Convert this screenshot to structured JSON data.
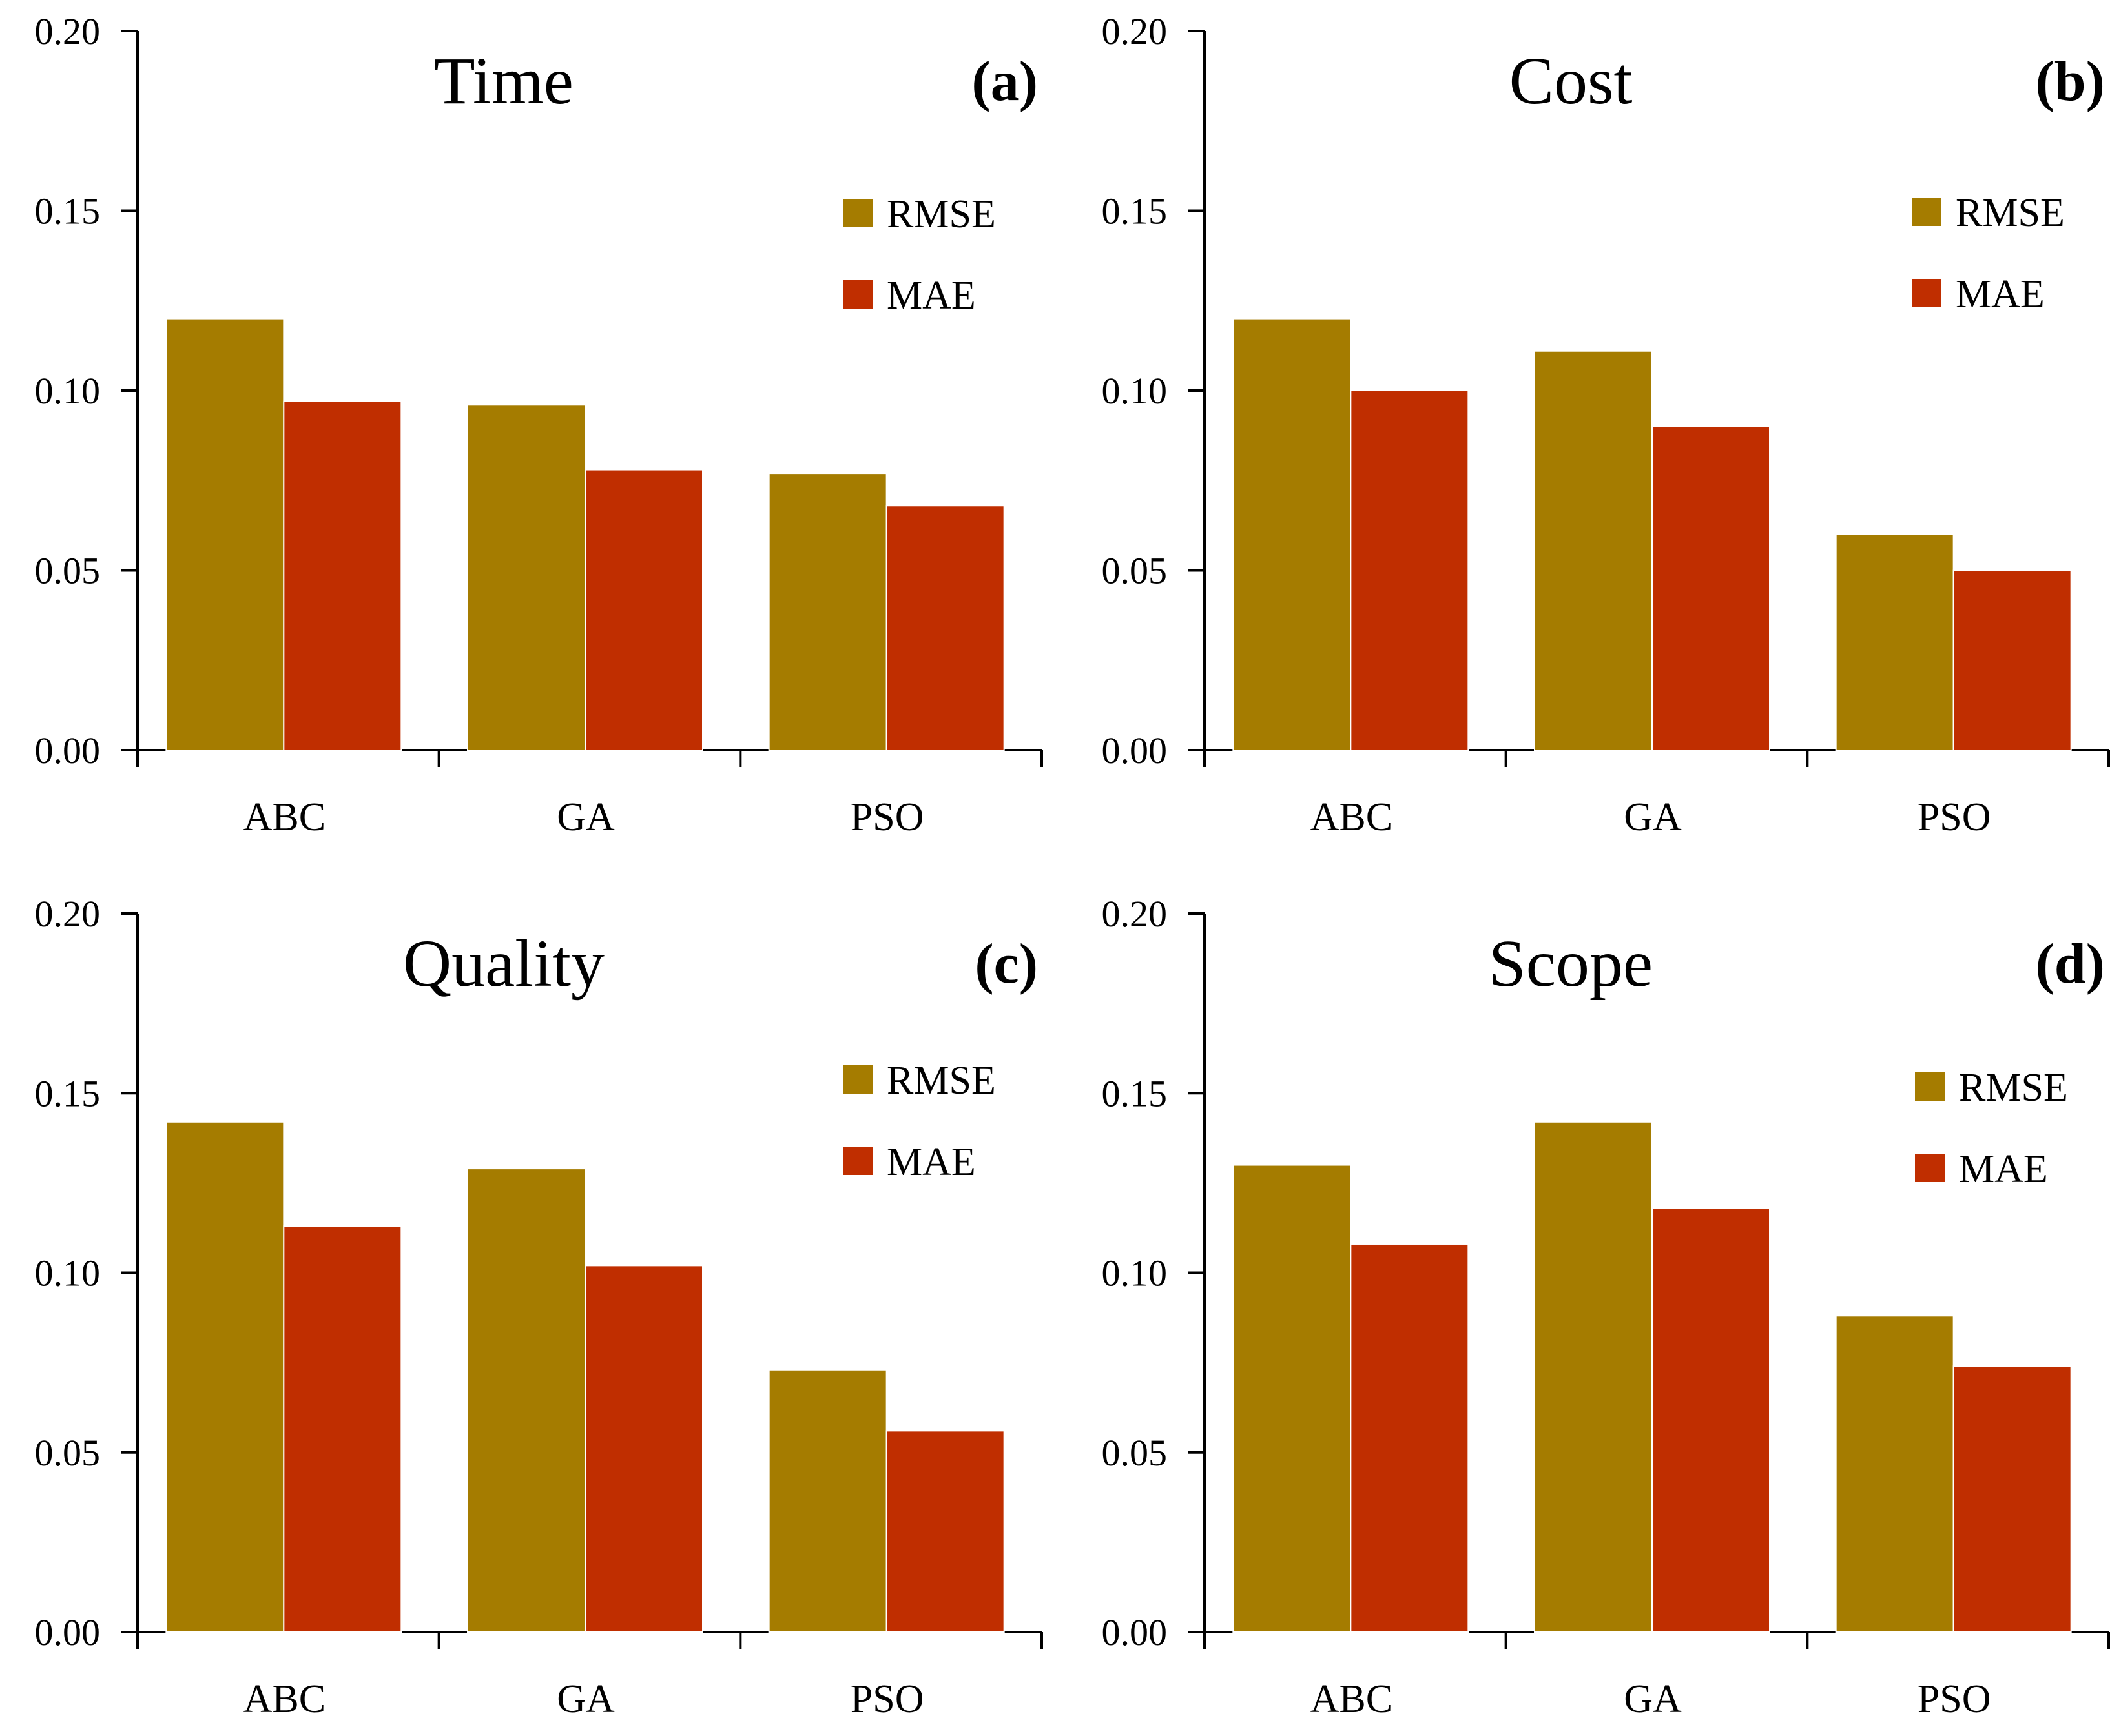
{
  "colors": {
    "RMSE": "#a57c00",
    "MAE": "#c02e00",
    "bar_border": "#ffffff"
  },
  "chart_data": [
    {
      "panel": "(a)",
      "title": "Time",
      "type": "bar",
      "categories": [
        "ABC",
        "GA",
        "PSO"
      ],
      "series": [
        {
          "name": "RMSE",
          "values": [
            0.12,
            0.096,
            0.077
          ]
        },
        {
          "name": "MAE",
          "values": [
            0.097,
            0.078,
            0.068
          ]
        }
      ],
      "ylim": [
        0,
        0.2
      ],
      "yticks": [
        "0.00",
        "0.05",
        "0.10",
        "0.15",
        "0.20"
      ],
      "legend": "right"
    },
    {
      "panel": "(b)",
      "title": "Cost",
      "type": "bar",
      "categories": [
        "ABC",
        "GA",
        "PSO"
      ],
      "series": [
        {
          "name": "RMSE",
          "values": [
            0.12,
            0.111,
            0.06
          ]
        },
        {
          "name": "MAE",
          "values": [
            0.1,
            0.09,
            0.05
          ]
        }
      ],
      "ylim": [
        0,
        0.2
      ],
      "yticks": [
        "0.00",
        "0.05",
        "0.10",
        "0.15",
        "0.20"
      ],
      "legend": "right"
    },
    {
      "panel": "(c)",
      "title": "Quality",
      "type": "bar",
      "categories": [
        "ABC",
        "GA",
        "PSO"
      ],
      "series": [
        {
          "name": "RMSE",
          "values": [
            0.142,
            0.129,
            0.073
          ]
        },
        {
          "name": "MAE",
          "values": [
            0.113,
            0.102,
            0.056
          ]
        }
      ],
      "ylim": [
        0,
        0.2
      ],
      "yticks": [
        "0.00",
        "0.05",
        "0.10",
        "0.15",
        "0.20"
      ],
      "legend": "right"
    },
    {
      "panel": "(d)",
      "title": "Scope",
      "type": "bar",
      "categories": [
        "ABC",
        "GA",
        "PSO"
      ],
      "series": [
        {
          "name": "RMSE",
          "values": [
            0.13,
            0.142,
            0.088
          ]
        },
        {
          "name": "MAE",
          "values": [
            0.108,
            0.118,
            0.074
          ]
        }
      ],
      "ylim": [
        0,
        0.2
      ],
      "yticks": [
        "0.00",
        "0.05",
        "0.10",
        "0.15",
        "0.20"
      ],
      "legend": "right"
    }
  ]
}
